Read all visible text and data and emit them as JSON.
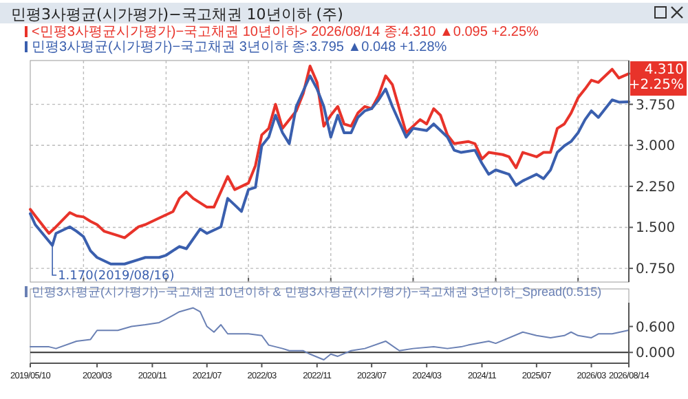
{
  "chart_data": [
    {
      "type": "line",
      "title": "민평3사평균(시가평가)−국고채권 10년이하 (주)",
      "xlim": [
        "2019-05-10",
        "2026-08-14"
      ],
      "xticks": [
        {
          "value": "2020-01",
          "label": null
        },
        {
          "value": "2021-01",
          "label": null
        },
        {
          "value": "2022-01",
          "label": null
        },
        {
          "value": "2023-01",
          "label": null
        },
        {
          "value": "2024-01",
          "label": null
        },
        {
          "value": "2025-01",
          "label": null
        },
        {
          "value": "2026-01",
          "label": null
        }
      ],
      "ylim": [
        0.5,
        4.55
      ],
      "yticks": [
        {
          "value": 0.75,
          "label": "0.750"
        },
        {
          "value": 1.5,
          "label": "1.500"
        },
        {
          "value": 2.25,
          "label": "2.250"
        },
        {
          "value": 3,
          "label": "3.000"
        },
        {
          "value": 3.75,
          "label": "3.750"
        }
      ],
      "grid": true,
      "legend": "top left",
      "tick_labels": "y",
      "annotations": [
        {
          "text": "1.170(2019/08/16)",
          "x": "2019-08-16",
          "y": 1.17
        },
        {
          "text": "4.310 +2.25%",
          "x": "2026-08-14",
          "y": 4.31
        }
      ],
      "series": [
        {
          "name": "<민평3사평균시가평가)−국고채권 10년이하> 2026/08/14 종:4.310 ▲0.095 +2.25%",
          "color": "#e8332a",
          "x": [
            "2019-05-10",
            "2019-06",
            "2019-08",
            "2019-09",
            "2019-11",
            "2019-12",
            "2020-01",
            "2020-02",
            "2020-03",
            "2020-04",
            "2020-06",
            "2020-07",
            "2020-09",
            "2020-10",
            "2020-12",
            "2021-02",
            "2021-03",
            "2021-04",
            "2021-05",
            "2021-07",
            "2021-08",
            "2021-10",
            "2021-11",
            "2022-01",
            "2022-02",
            "2022-03",
            "2022-04",
            "2022-05",
            "2022-06",
            "2022-08",
            "2022-09",
            "2022-10",
            "2022-11",
            "2022-12",
            "2023-01",
            "2023-02",
            "2023-03",
            "2023-04",
            "2023-05",
            "2023-06",
            "2023-07",
            "2023-08",
            "2023-09",
            "2023-10",
            "2023-12",
            "2024-01",
            "2024-02",
            "2024-03",
            "2024-04",
            "2024-05",
            "2024-06",
            "2024-07",
            "2024-09",
            "2024-10",
            "2024-11",
            "2024-12",
            "2025-02",
            "2025-03",
            "2025-04",
            "2025-05",
            "2025-07",
            "2025-08",
            "2025-09",
            "2025-10",
            "2025-11",
            "2025-12",
            "2026-01",
            "2026-02",
            "2026-03",
            "2026-04",
            "2026-06",
            "2026-07",
            "2026-08-14"
          ],
          "values": [
            1.83,
            1.71,
            1.39,
            1.51,
            1.77,
            1.71,
            1.69,
            1.61,
            1.55,
            1.43,
            1.35,
            1.31,
            1.51,
            1.55,
            1.67,
            1.79,
            2.03,
            2.15,
            2.03,
            1.87,
            1.87,
            2.43,
            2.19,
            2.31,
            2.63,
            3.19,
            3.31,
            3.75,
            3.31,
            3.63,
            3.95,
            4.45,
            4.15,
            3.35,
            3.55,
            3.71,
            3.39,
            3.35,
            3.59,
            3.71,
            3.67,
            3.91,
            4.27,
            4.11,
            3.23,
            3.35,
            3.47,
            3.39,
            3.67,
            3.55,
            3.19,
            3.03,
            3.07,
            3.03,
            2.75,
            2.87,
            2.83,
            2.79,
            2.59,
            2.87,
            2.79,
            2.87,
            2.87,
            3.31,
            3.39,
            3.59,
            3.87,
            4.03,
            4.19,
            4.15,
            4.39,
            4.23,
            4.31
          ]
        },
        {
          "name": "민평3사평균(시가평가)−국고채권 3년이하 종:3.795 ▲0.048 +1.28%",
          "color": "#3a5fae",
          "x": [
            "2019-05-10",
            "2019-06",
            "2019-08-16",
            "2019-09",
            "2019-11",
            "2019-12",
            "2020-01",
            "2020-02",
            "2020-03",
            "2020-05",
            "2020-07",
            "2020-09",
            "2020-10",
            "2020-12",
            "2021-01",
            "2021-03",
            "2021-04",
            "2021-06",
            "2021-07",
            "2021-09",
            "2021-10",
            "2021-11",
            "2021-12",
            "2022-01",
            "2022-02",
            "2022-03",
            "2022-04",
            "2022-05",
            "2022-06",
            "2022-07",
            "2022-08",
            "2022-10",
            "2022-11",
            "2022-12",
            "2023-01",
            "2023-02",
            "2023-03",
            "2023-04",
            "2023-05",
            "2023-06",
            "2023-07",
            "2023-08",
            "2023-09",
            "2023-10",
            "2023-12",
            "2024-01",
            "2024-03",
            "2024-04",
            "2024-06",
            "2024-07",
            "2024-08",
            "2024-10",
            "2024-11",
            "2024-12",
            "2025-01",
            "2025-03",
            "2025-04",
            "2025-05",
            "2025-07",
            "2025-08",
            "2025-09",
            "2025-10",
            "2025-11",
            "2025-12",
            "2026-01",
            "2026-02",
            "2026-03",
            "2026-04",
            "2026-06",
            "2026-07",
            "2026-08-14"
          ],
          "values": [
            1.75,
            1.55,
            1.17,
            1.39,
            1.51,
            1.43,
            1.33,
            1.07,
            0.95,
            0.83,
            0.83,
            0.91,
            0.95,
            0.95,
            0.99,
            1.15,
            1.11,
            1.47,
            1.39,
            1.51,
            2.03,
            1.91,
            1.79,
            2.19,
            2.23,
            2.99,
            3.15,
            3.55,
            3.23,
            3.03,
            3.71,
            4.27,
            4.03,
            3.71,
            3.15,
            3.55,
            3.23,
            3.23,
            3.51,
            3.63,
            3.67,
            3.83,
            4.03,
            3.71,
            3.15,
            3.31,
            3.27,
            3.39,
            3.15,
            2.91,
            2.87,
            2.91,
            2.67,
            2.47,
            2.55,
            2.47,
            2.27,
            2.35,
            2.47,
            2.39,
            2.55,
            2.87,
            2.99,
            3.07,
            3.23,
            3.47,
            3.63,
            3.51,
            3.83,
            3.79,
            3.795
          ]
        }
      ]
    },
    {
      "type": "line",
      "xlim": [
        "2019-05-10",
        "2026-08-14"
      ],
      "xticks": [
        {
          "value": "2019-05-10",
          "label": "2019/05/10"
        },
        {
          "value": "2020-03",
          "label": "2020/03"
        },
        {
          "value": "2020-11",
          "label": "2020/11"
        },
        {
          "value": "2021-07",
          "label": "2021/07"
        },
        {
          "value": "2022-03",
          "label": "2022/03"
        },
        {
          "value": "2022-11",
          "label": "2022/11"
        },
        {
          "value": "2023-07",
          "label": "2023/07"
        },
        {
          "value": "2024-03",
          "label": "2024/03"
        },
        {
          "value": "2024-11",
          "label": "2024/11"
        },
        {
          "value": "2025-07",
          "label": "2025/07"
        },
        {
          "value": "2026-03",
          "label": "2026/03"
        },
        {
          "value": "2026-08-14",
          "label": "2026/08/14"
        }
      ],
      "ylim": [
        -0.25,
        1.15
      ],
      "yticks": [
        {
          "value": 0,
          "label": "0.000"
        },
        {
          "value": 0.6,
          "label": "0.600"
        }
      ],
      "legend": "top left",
      "ref_lines": [
        {
          "axis": "y",
          "value": 0,
          "color": "#333333"
        }
      ],
      "series": [
        {
          "name": "민평3사평균(시가평가)−국고채권 10년이하 & 민평3사평균(시가평가)−국고채권 3년이하_Spread(0.515)",
          "color": "#6a80b4",
          "x": [
            "2019-05-10",
            "2019-08",
            "2019-09",
            "2019-12",
            "2020-02",
            "2020-03",
            "2020-06",
            "2020-08",
            "2020-10",
            "2020-12",
            "2021-01",
            "2021-03",
            "2021-05",
            "2021-06",
            "2021-07",
            "2021-08",
            "2021-09",
            "2021-10",
            "2022-01",
            "2022-03",
            "2022-04",
            "2022-06",
            "2022-07",
            "2022-09",
            "2022-10",
            "2022-12",
            "2023-01",
            "2023-02",
            "2023-04",
            "2023-06",
            "2023-09",
            "2023-11",
            "2024-01",
            "2024-04",
            "2024-06",
            "2024-08",
            "2024-09",
            "2024-12",
            "2025-01",
            "2025-05",
            "2025-07",
            "2025-09",
            "2025-11",
            "2025-12",
            "2026-01",
            "2026-03",
            "2026-04",
            "2026-06",
            "2026-08-14"
          ],
          "values": [
            0.13,
            0.13,
            0.09,
            0.26,
            0.3,
            0.51,
            0.51,
            0.6,
            0.64,
            0.69,
            0.77,
            0.94,
            1.03,
            0.94,
            0.6,
            0.47,
            0.64,
            0.43,
            0.43,
            0.39,
            0.17,
            0.09,
            0.04,
            0.04,
            -0.04,
            -0.17,
            -0.04,
            -0.09,
            0.04,
            0.09,
            0.26,
            0.04,
            0.09,
            0.13,
            0.09,
            0.13,
            0.17,
            0.26,
            0.21,
            0.47,
            0.39,
            0.34,
            0.39,
            0.47,
            0.39,
            0.34,
            0.43,
            0.43,
            0.515
          ]
        }
      ]
    }
  ]
}
